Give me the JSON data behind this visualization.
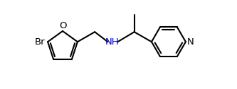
{
  "background_color": "#ffffff",
  "line_color": "#000000",
  "nh_color": "#0000cd",
  "n_color": "#000000",
  "o_color": "#000000",
  "br_label": "Br",
  "o_label": "O",
  "nh_label": "NH",
  "n_label": "N",
  "line_width": 1.5,
  "font_size": 9.5,
  "fig_width": 3.33,
  "fig_height": 1.26,
  "dpi": 100
}
